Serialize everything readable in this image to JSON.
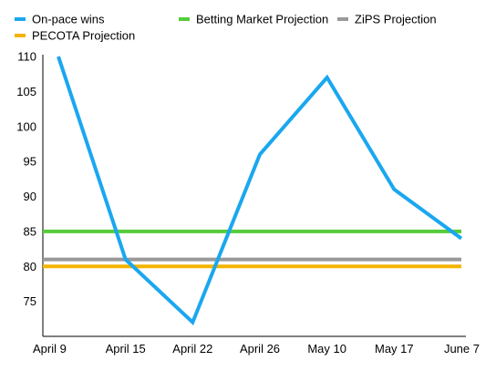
{
  "chart_data": {
    "type": "line",
    "title": "",
    "xlabel": "",
    "ylabel": "",
    "categories": [
      "April 9",
      "April 15",
      "April 22",
      "April 26",
      "May 10",
      "May 17",
      "June 7"
    ],
    "ylim": [
      70,
      110
    ],
    "yticks": [
      75,
      80,
      85,
      90,
      95,
      100,
      105,
      110
    ],
    "grid": false,
    "legend_position": "top",
    "series": [
      {
        "name": "On-pace wins",
        "color": "#1aa7f0",
        "values": [
          110,
          81,
          72,
          96,
          107,
          91,
          84
        ]
      },
      {
        "name": "Betting Market Projection",
        "color": "#55cc3a",
        "values": [
          85,
          85,
          85,
          85,
          85,
          85,
          85
        ]
      },
      {
        "name": "ZiPS Projection",
        "color": "#999999",
        "values": [
          81,
          81,
          81,
          81,
          81,
          81,
          81
        ]
      },
      {
        "name": "PECOTA Projection",
        "color": "#f4b400",
        "values": [
          80,
          80,
          80,
          80,
          80,
          80,
          80
        ]
      }
    ]
  }
}
